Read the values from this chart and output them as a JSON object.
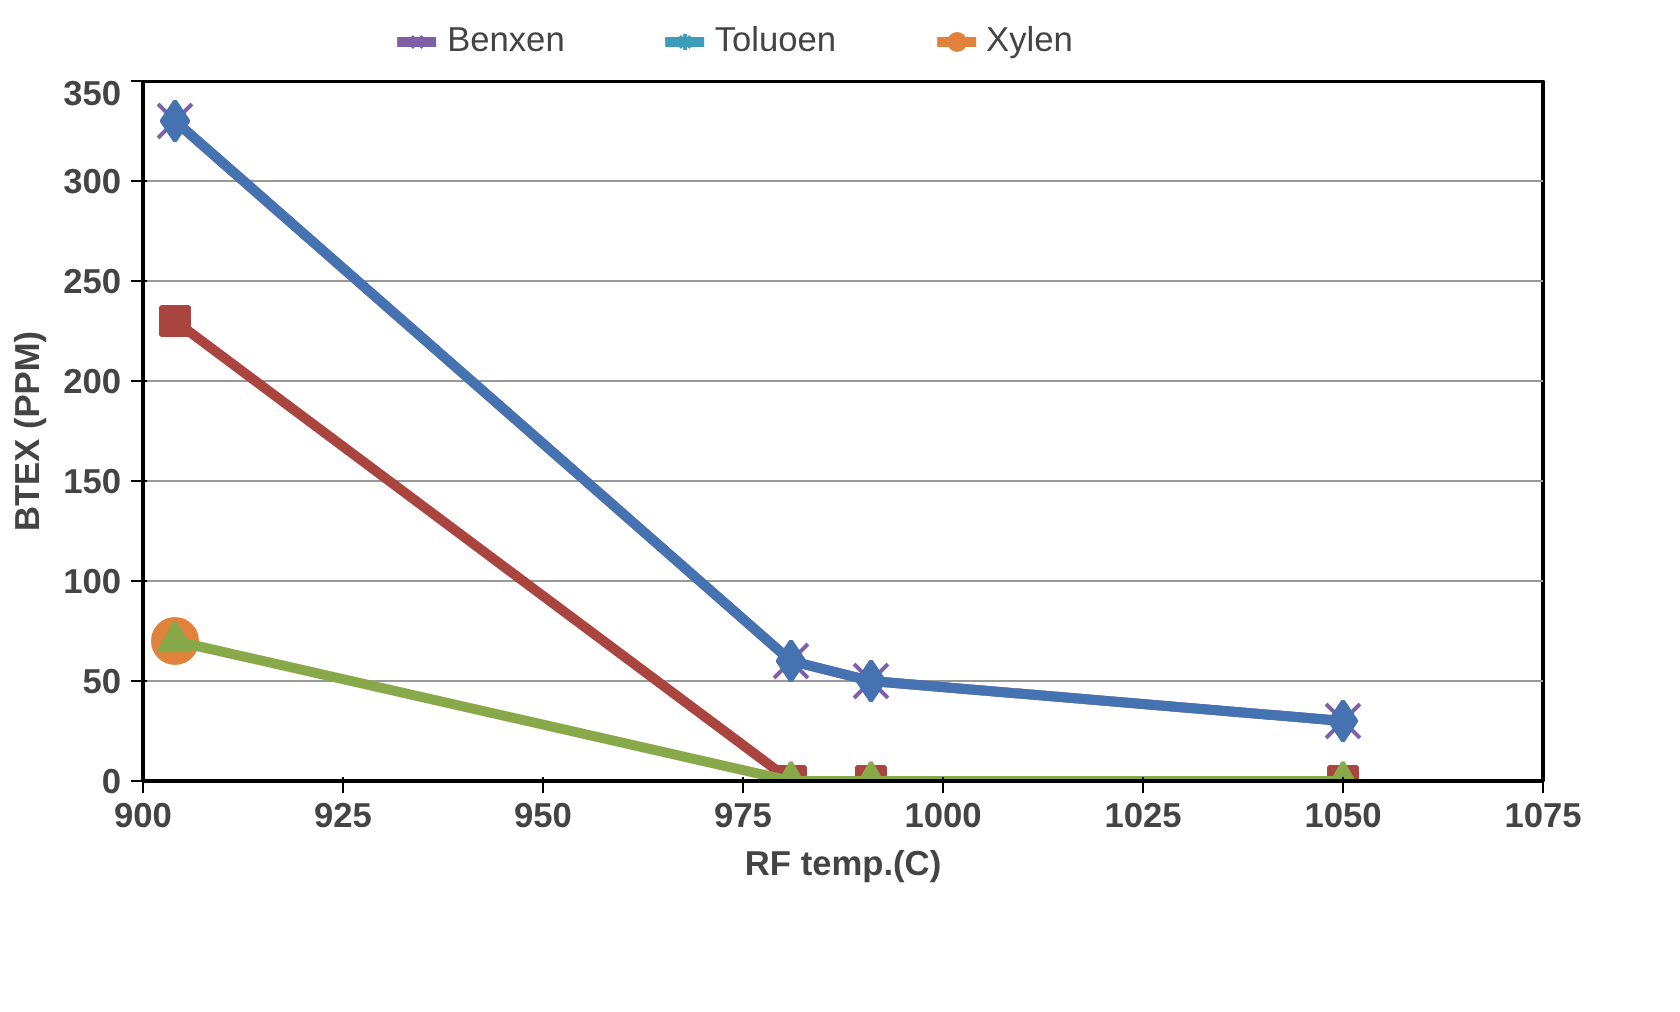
{
  "chart_data": {
    "type": "line",
    "xlabel": "RF temp.(C)",
    "ylabel": "BTEX (PPM)",
    "x": [
      904,
      981,
      991,
      1050
    ],
    "series": [
      {
        "name": "Benxen",
        "color": "#7f5fa5",
        "marker": "cross",
        "values": [
          330,
          60,
          50,
          30
        ]
      },
      {
        "name": "Toluoen",
        "color": "#3c9dbb",
        "marker": "star",
        "values": [
          null,
          null,
          null,
          null
        ]
      },
      {
        "name": "Xylen",
        "color": "#e0823c",
        "marker": "circle",
        "values": [
          70,
          null,
          null,
          null
        ]
      },
      {
        "color": "#4572b0",
        "marker": "diamond",
        "values": [
          330,
          60,
          50,
          30
        ]
      },
      {
        "color": "#a9443f",
        "marker": "square",
        "values": [
          230,
          0,
          0,
          0
        ]
      },
      {
        "color": "#89a84a",
        "marker": "triangle",
        "values": [
          70,
          0,
          0,
          0
        ]
      }
    ],
    "xlim": [
      900,
      1075
    ],
    "xticks": [
      900,
      925,
      950,
      975,
      1000,
      1025,
      1050,
      1075
    ],
    "ylim": [
      0,
      350
    ],
    "yticks": [
      0,
      50,
      100,
      150,
      200,
      250,
      300,
      350
    ],
    "grid": "y",
    "legend": "top"
  }
}
